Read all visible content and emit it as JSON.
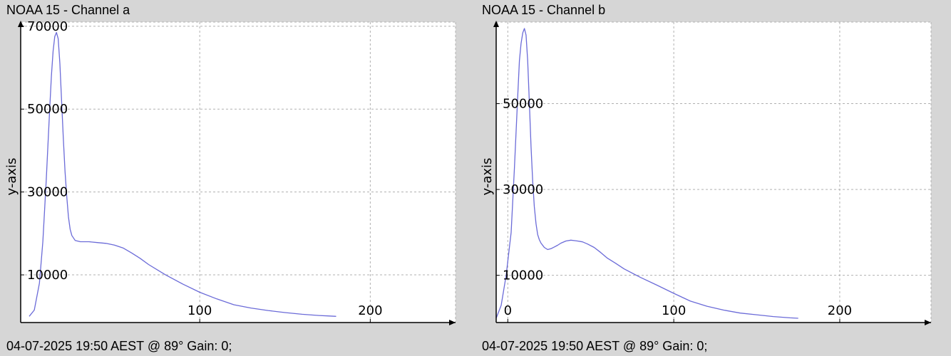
{
  "chart_data": [
    {
      "type": "line",
      "title": "NOAA 15 - Channel a",
      "footer": "04-07-2025 19:50 AEST @ 89° Gain: 0;",
      "xlabel": "",
      "ylabel": "y-axis",
      "xlim": [
        -5,
        250
      ],
      "ylim": [
        -1500,
        71000
      ],
      "x_ticks": [
        100,
        200
      ],
      "y_ticks": [
        10000,
        30000,
        50000,
        70000
      ],
      "grid": true,
      "colors": {
        "line": "#6b6bd8",
        "grid": "#b0b0b0",
        "plot_bg": "#ffffff",
        "panel_bg": "#d6d6d6"
      },
      "series": [
        {
          "x": [
            0,
            3,
            6,
            8,
            10,
            12,
            13,
            14,
            15,
            16,
            17,
            18,
            19,
            20,
            21,
            22,
            23,
            24,
            25,
            27,
            30,
            35,
            40,
            45,
            50,
            55,
            60,
            65,
            70,
            80,
            90,
            100,
            110,
            120,
            130,
            140,
            150,
            160,
            170,
            175,
            180
          ],
          "y": [
            0,
            1500,
            8000,
            18000,
            33000,
            50000,
            58000,
            64000,
            67500,
            68500,
            67000,
            61000,
            52000,
            43000,
            35000,
            29000,
            24000,
            21000,
            19500,
            18300,
            18000,
            18000,
            17800,
            17600,
            17200,
            16500,
            15300,
            14000,
            12500,
            10000,
            7800,
            5800,
            4200,
            2800,
            2000,
            1400,
            900,
            500,
            200,
            100,
            0
          ]
        }
      ]
    },
    {
      "type": "line",
      "title": "NOAA 15 - Channel b",
      "footer": "04-07-2025 19:50 AEST @ 89° Gain: 0;",
      "xlabel": "",
      "ylabel": "y-axis",
      "xlim": [
        -7,
        255
      ],
      "ylim": [
        -1000,
        69000
      ],
      "x_ticks": [
        0,
        100,
        200
      ],
      "y_ticks": [
        10000,
        30000,
        50000
      ],
      "grid": true,
      "colors": {
        "line": "#6b6bd8",
        "grid": "#b0b0b0",
        "plot_bg": "#ffffff",
        "panel_bg": "#d6d6d6"
      },
      "series": [
        {
          "x": [
            -7,
            -4,
            -1,
            2,
            4,
            6,
            7,
            8,
            9,
            10,
            11,
            12,
            13,
            14,
            15,
            16,
            17,
            18,
            19,
            20,
            22,
            24,
            26,
            28,
            30,
            32,
            35,
            38,
            40,
            42,
            45,
            48,
            52,
            56,
            60,
            65,
            70,
            80,
            90,
            100,
            110,
            120,
            130,
            140,
            150,
            160,
            170,
            175
          ],
          "y": [
            0,
            3000,
            10000,
            20000,
            35000,
            52000,
            60000,
            64000,
            66500,
            67500,
            66000,
            60000,
            50000,
            40000,
            32000,
            26000,
            22000,
            19500,
            18300,
            17500,
            16500,
            16000,
            16200,
            16600,
            17000,
            17500,
            18000,
            18200,
            18100,
            18000,
            17800,
            17300,
            16500,
            15300,
            14000,
            12800,
            11500,
            9500,
            7700,
            5800,
            4000,
            2800,
            1900,
            1200,
            800,
            400,
            100,
            0
          ]
        }
      ]
    }
  ]
}
